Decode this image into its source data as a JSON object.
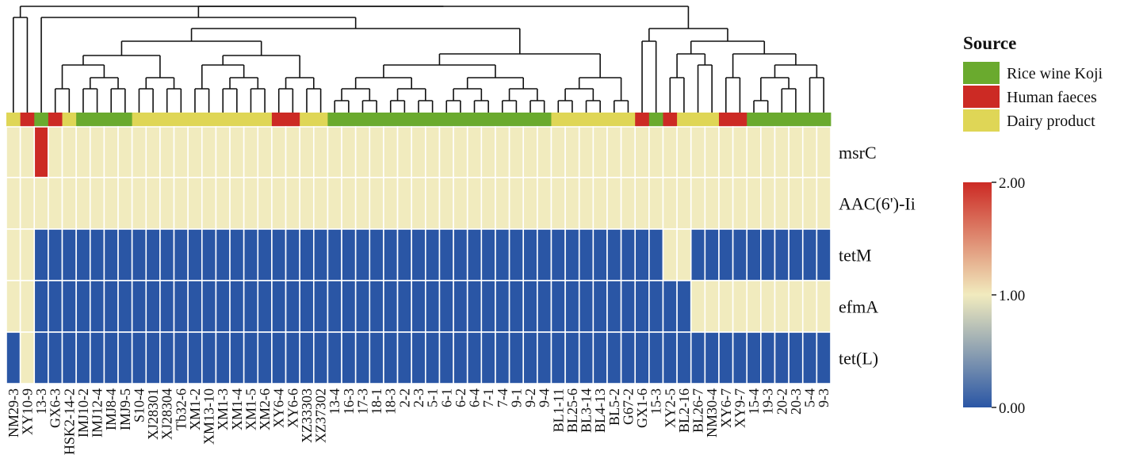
{
  "chart_data": {
    "type": "heatmap",
    "legend_source": {
      "title": "Source",
      "entries": [
        {
          "label": "Rice wine Koji",
          "color": "#6aaa2e"
        },
        {
          "label": "Human faeces",
          "color": "#cc2a24"
        },
        {
          "label": "Dairy product",
          "color": "#dfd656"
        }
      ]
    },
    "colorscale": {
      "min": 0,
      "mid": 1,
      "max": 2,
      "ticks": [
        "2.00",
        "1.00",
        "0.00"
      ],
      "colors": [
        "#2a56a5",
        "#f1ebbe",
        "#cc2a24"
      ]
    },
    "rows": [
      "msrC",
      "AAC(6')-Ii",
      "tetM",
      "efmA",
      "tet(L)"
    ],
    "columns": [
      "NM29-3",
      "XY10-9",
      "13-3",
      "GX6-3",
      "HSK2-14-2",
      "IMJ10-2",
      "IMJ12-4",
      "IMJ8-4",
      "IMJ9-5",
      "S10-4",
      "XJ28301",
      "XJ28304",
      "Tb32-6",
      "XM1-2",
      "XM13-10",
      "XM1-3",
      "XM1-4",
      "XM1-5",
      "XM2-6",
      "XY6-4",
      "XY6-6",
      "XZ33303",
      "XZ37302",
      "13-4",
      "16-3",
      "17-3",
      "18-1",
      "18-3",
      "2-2",
      "2-3",
      "5-1",
      "6-1",
      "6-2",
      "6-4",
      "7-1",
      "7-4",
      "9-1",
      "9-2",
      "9-4",
      "BL1-11",
      "BL25-6",
      "BL3-14",
      "BL4-13",
      "BL5-2",
      "G67-2",
      "GX1-6",
      "15-3",
      "XY2-5",
      "BL2-16",
      "BL26-7",
      "NM30-4",
      "XY6-7",
      "XY9-7",
      "15-4",
      "19-3",
      "20-2",
      "20-3",
      "5-4",
      "9-3"
    ],
    "source_codes": [
      "D",
      "H",
      "R",
      "H",
      "D",
      "R",
      "R",
      "R",
      "R",
      "D",
      "D",
      "D",
      "D",
      "D",
      "D",
      "D",
      "D",
      "D",
      "D",
      "H",
      "H",
      "D",
      "D",
      "R",
      "R",
      "R",
      "R",
      "R",
      "R",
      "R",
      "R",
      "R",
      "R",
      "R",
      "R",
      "R",
      "R",
      "R",
      "R",
      "D",
      "D",
      "D",
      "D",
      "D",
      "D",
      "H",
      "R",
      "H",
      "D",
      "D",
      "D",
      "H",
      "H",
      "R",
      "R",
      "R",
      "R",
      "R",
      "R"
    ],
    "values": [
      [
        1,
        1,
        2,
        1,
        1,
        1,
        1,
        1,
        1,
        1,
        1,
        1,
        1,
        1,
        1,
        1,
        1,
        1,
        1,
        1,
        1,
        1,
        1,
        1,
        1,
        1,
        1,
        1,
        1,
        1,
        1,
        1,
        1,
        1,
        1,
        1,
        1,
        1,
        1,
        1,
        1,
        1,
        1,
        1,
        1,
        1,
        1,
        1,
        1,
        1,
        1,
        1,
        1,
        1,
        1,
        1,
        1,
        1,
        1
      ],
      [
        1,
        1,
        1,
        1,
        1,
        1,
        1,
        1,
        1,
        1,
        1,
        1,
        1,
        1,
        1,
        1,
        1,
        1,
        1,
        1,
        1,
        1,
        1,
        1,
        1,
        1,
        1,
        1,
        1,
        1,
        1,
        1,
        1,
        1,
        1,
        1,
        1,
        1,
        1,
        1,
        1,
        1,
        1,
        1,
        1,
        1,
        1,
        1,
        1,
        1,
        1,
        1,
        1,
        1,
        1,
        1,
        1,
        1,
        1
      ],
      [
        1,
        1,
        0,
        0,
        0,
        0,
        0,
        0,
        0,
        0,
        0,
        0,
        0,
        0,
        0,
        0,
        0,
        0,
        0,
        0,
        0,
        0,
        0,
        0,
        0,
        0,
        0,
        0,
        0,
        0,
        0,
        0,
        0,
        0,
        0,
        0,
        0,
        0,
        0,
        0,
        0,
        0,
        0,
        0,
        0,
        0,
        0,
        1,
        1,
        0,
        0,
        0,
        0,
        0,
        0,
        0,
        0,
        0,
        0
      ],
      [
        1,
        1,
        0,
        0,
        0,
        0,
        0,
        0,
        0,
        0,
        0,
        0,
        0,
        0,
        0,
        0,
        0,
        0,
        0,
        0,
        0,
        0,
        0,
        0,
        0,
        0,
        0,
        0,
        0,
        0,
        0,
        0,
        0,
        0,
        0,
        0,
        0,
        0,
        0,
        0,
        0,
        0,
        0,
        0,
        0,
        0,
        0,
        0,
        0,
        1,
        1,
        1,
        1,
        1,
        1,
        1,
        1,
        1,
        1
      ],
      [
        0,
        1,
        0,
        0,
        0,
        0,
        0,
        0,
        0,
        0,
        0,
        0,
        0,
        0,
        0,
        0,
        0,
        0,
        0,
        0,
        0,
        0,
        0,
        0,
        0,
        0,
        0,
        0,
        0,
        0,
        0,
        0,
        0,
        0,
        0,
        0,
        0,
        0,
        0,
        0,
        0,
        0,
        0,
        0,
        0,
        0,
        0,
        0,
        0,
        0,
        0,
        0,
        0,
        0,
        0,
        0,
        0,
        0,
        0
      ]
    ]
  }
}
